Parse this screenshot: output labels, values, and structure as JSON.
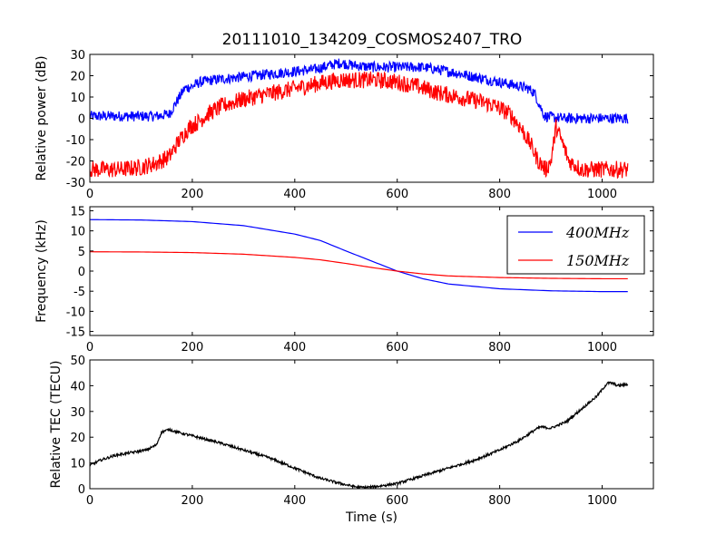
{
  "figure": {
    "title": "20111010_134209_COSMOS2407_TRO"
  },
  "chart_data": [
    {
      "type": "line",
      "ylabel": "Relative power (dB)",
      "xlabel": "",
      "xlim": [
        0,
        1100
      ],
      "ylim": [
        -30,
        30
      ],
      "xticks": [
        0,
        200,
        400,
        600,
        800,
        1000
      ],
      "yticks": [
        -30,
        -20,
        -10,
        0,
        10,
        20,
        30
      ],
      "legend": null,
      "series": [
        {
          "color": "#0000ff",
          "noise": 2.5,
          "points": [
            [
              0,
              1
            ],
            [
              60,
              1
            ],
            [
              100,
              1
            ],
            [
              130,
              1
            ],
            [
              155,
              2
            ],
            [
              170,
              8
            ],
            [
              185,
              14
            ],
            [
              200,
              15
            ],
            [
              215,
              17
            ],
            [
              240,
              18
            ],
            [
              280,
              19
            ],
            [
              320,
              20
            ],
            [
              360,
              21
            ],
            [
              400,
              22
            ],
            [
              440,
              23
            ],
            [
              470,
              25
            ],
            [
              490,
              26
            ],
            [
              510,
              25
            ],
            [
              550,
              24
            ],
            [
              600,
              24
            ],
            [
              650,
              24
            ],
            [
              700,
              22
            ],
            [
              740,
              20
            ],
            [
              780,
              18
            ],
            [
              820,
              16
            ],
            [
              840,
              15
            ],
            [
              855,
              14
            ],
            [
              868,
              12
            ],
            [
              878,
              6
            ],
            [
              888,
              1
            ],
            [
              920,
              0
            ],
            [
              1000,
              0
            ],
            [
              1050,
              0
            ]
          ]
        },
        {
          "color": "#ff0000",
          "noise": 4,
          "points": [
            [
              0,
              -24
            ],
            [
              60,
              -24
            ],
            [
              100,
              -23
            ],
            [
              130,
              -21
            ],
            [
              155,
              -18
            ],
            [
              170,
              -12
            ],
            [
              182,
              -8
            ],
            [
              195,
              -4
            ],
            [
              210,
              -2
            ],
            [
              230,
              2
            ],
            [
              260,
              6
            ],
            [
              300,
              9
            ],
            [
              340,
              11
            ],
            [
              380,
              13
            ],
            [
              420,
              15
            ],
            [
              460,
              17
            ],
            [
              490,
              18
            ],
            [
              520,
              18
            ],
            [
              560,
              18
            ],
            [
              600,
              17
            ],
            [
              640,
              15
            ],
            [
              680,
              12
            ],
            [
              720,
              10
            ],
            [
              760,
              8
            ],
            [
              790,
              6
            ],
            [
              820,
              2
            ],
            [
              840,
              -4
            ],
            [
              860,
              -12
            ],
            [
              875,
              -20
            ],
            [
              890,
              -24
            ],
            [
              900,
              -20
            ],
            [
              910,
              -4
            ],
            [
              920,
              -10
            ],
            [
              935,
              -20
            ],
            [
              960,
              -24
            ],
            [
              1000,
              -24
            ],
            [
              1050,
              -24
            ]
          ]
        }
      ]
    },
    {
      "type": "line",
      "ylabel": "Frequency (kHz)",
      "xlabel": "",
      "xlim": [
        0,
        1100
      ],
      "ylim": [
        -16,
        16
      ],
      "xticks": [
        0,
        200,
        400,
        600,
        800,
        1000
      ],
      "yticks": [
        -15,
        -10,
        -5,
        0,
        5,
        10,
        15
      ],
      "legend": "top-right",
      "series": [
        {
          "name": "400MHz",
          "color": "#0000ff",
          "noise": 0,
          "points": [
            [
              0,
              12.8
            ],
            [
              100,
              12.7
            ],
            [
              200,
              12.3
            ],
            [
              300,
              11.3
            ],
            [
              400,
              9.2
            ],
            [
              450,
              7.6
            ],
            [
              500,
              5.0
            ],
            [
              550,
              2.5
            ],
            [
              600,
              0.0
            ],
            [
              650,
              -1.9
            ],
            [
              700,
              -3.2
            ],
            [
              800,
              -4.4
            ],
            [
              900,
              -4.9
            ],
            [
              1000,
              -5.1
            ],
            [
              1050,
              -5.1
            ]
          ]
        },
        {
          "name": "150MHz",
          "color": "#ff0000",
          "noise": 0,
          "points": [
            [
              0,
              4.8
            ],
            [
              100,
              4.75
            ],
            [
              200,
              4.6
            ],
            [
              300,
              4.2
            ],
            [
              400,
              3.4
            ],
            [
              450,
              2.8
            ],
            [
              500,
              1.9
            ],
            [
              550,
              0.9
            ],
            [
              600,
              0.0
            ],
            [
              650,
              -0.7
            ],
            [
              700,
              -1.2
            ],
            [
              800,
              -1.6
            ],
            [
              900,
              -1.8
            ],
            [
              1000,
              -1.9
            ],
            [
              1050,
              -1.9
            ]
          ]
        }
      ]
    },
    {
      "type": "line",
      "ylabel": "Relative TEC (TECU)",
      "xlabel": "Time (s)",
      "xlim": [
        0,
        1100
      ],
      "ylim": [
        0,
        50
      ],
      "xticks": [
        0,
        200,
        400,
        600,
        800,
        1000
      ],
      "yticks": [
        0,
        10,
        20,
        30,
        40,
        50
      ],
      "legend": null,
      "series": [
        {
          "color": "#000000",
          "noise": 0.5,
          "points": [
            [
              0,
              9
            ],
            [
              20,
              11
            ],
            [
              50,
              13
            ],
            [
              80,
              14
            ],
            [
              110,
              15
            ],
            [
              130,
              17
            ],
            [
              140,
              22
            ],
            [
              155,
              23
            ],
            [
              170,
              22
            ],
            [
              200,
              20.5
            ],
            [
              250,
              18
            ],
            [
              300,
              15
            ],
            [
              350,
              12
            ],
            [
              400,
              8
            ],
            [
              450,
              4
            ],
            [
              500,
              1.5
            ],
            [
              525,
              0.5
            ],
            [
              550,
              0.6
            ],
            [
              600,
              2
            ],
            [
              650,
              5
            ],
            [
              700,
              8
            ],
            [
              750,
              11
            ],
            [
              800,
              15
            ],
            [
              840,
              19
            ],
            [
              870,
              23
            ],
            [
              880,
              24
            ],
            [
              900,
              23.5
            ],
            [
              930,
              26
            ],
            [
              960,
              31
            ],
            [
              990,
              36
            ],
            [
              1010,
              41
            ],
            [
              1020,
              41
            ],
            [
              1030,
              40
            ],
            [
              1050,
              40.5
            ]
          ]
        }
      ]
    }
  ]
}
